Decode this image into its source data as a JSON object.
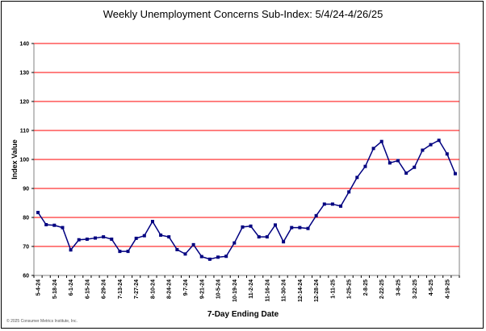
{
  "copyright": "© 2025 Consumer Metrics Institute, Inc.",
  "chart_data": {
    "type": "line",
    "title": "Weekly Unemployment Concerns Sub-Index: 5/4/24-4/26/25",
    "xlabel": "7-Day Ending Date",
    "ylabel": "Index Value",
    "ylim": [
      60,
      140
    ],
    "yticks": [
      60,
      70,
      80,
      90,
      100,
      110,
      120,
      130,
      140
    ],
    "grid": true,
    "colors": {
      "line": "#000080",
      "grid": "#ff0000",
      "axis": "#808080"
    },
    "x": [
      "5-4-24",
      "5-11-24",
      "5-18-24",
      "5-25-24",
      "6-1-24",
      "6-8-24",
      "6-15-24",
      "6-22-24",
      "6-29-24",
      "7-6-24",
      "7-13-24",
      "7-20-24",
      "7-27-24",
      "8-3-24",
      "8-10-24",
      "8-17-24",
      "8-24-24",
      "8-31-24",
      "9-7-24",
      "9-14-24",
      "9-21-24",
      "9-28-24",
      "10-5-24",
      "10-12-24",
      "10-19-24",
      "10-26-24",
      "11-2-24",
      "11-9-24",
      "11-16-24",
      "11-23-24",
      "11-30-24",
      "12-7-24",
      "12-14-24",
      "12-21-24",
      "12-28-24",
      "1-4-25",
      "1-11-25",
      "1-18-25",
      "1-25-25",
      "2-1-25",
      "2-8-25",
      "2-15-25",
      "2-22-25",
      "3-1-25",
      "3-8-25",
      "3-15-25",
      "3-22-25",
      "3-29-25",
      "4-5-25",
      "4-12-25",
      "4-19-25",
      "4-26-25"
    ],
    "xtick_labels": [
      "5-4-24",
      "5-18-24",
      "6-1-24",
      "6-15-24",
      "6-29-24",
      "7-13-24",
      "7-27-24",
      "8-10-24",
      "8-24-24",
      "9-7-24",
      "9-21-24",
      "10-5-24",
      "10-19-24",
      "11-2-24",
      "11-16-24",
      "11-30-24",
      "12-14-24",
      "12-28-24",
      "1-11-25",
      "1-25-25",
      "2-8-25",
      "2-22-25",
      "3-8-25",
      "3-22-25",
      "4-5-25",
      "4-19-25"
    ],
    "series": [
      {
        "values": [
          81.7,
          77.5,
          77.3,
          76.5,
          68.8,
          72.3,
          72.5,
          72.9,
          73.3,
          72.5,
          68.3,
          68.3,
          72.8,
          73.7,
          78.6,
          73.9,
          73.3,
          68.9,
          67.4,
          70.6,
          66.5,
          65.6,
          66.3,
          66.6,
          71.2,
          76.7,
          77.0,
          73.3,
          73.3,
          77.4,
          71.6,
          76.5,
          76.5,
          76.2,
          80.6,
          84.6,
          84.6,
          83.9,
          88.8,
          93.8,
          97.6,
          103.8,
          106.2,
          98.8,
          99.6,
          95.3,
          97.3,
          103.2,
          105.1,
          106.6,
          101.9,
          95.1
        ]
      }
    ]
  }
}
